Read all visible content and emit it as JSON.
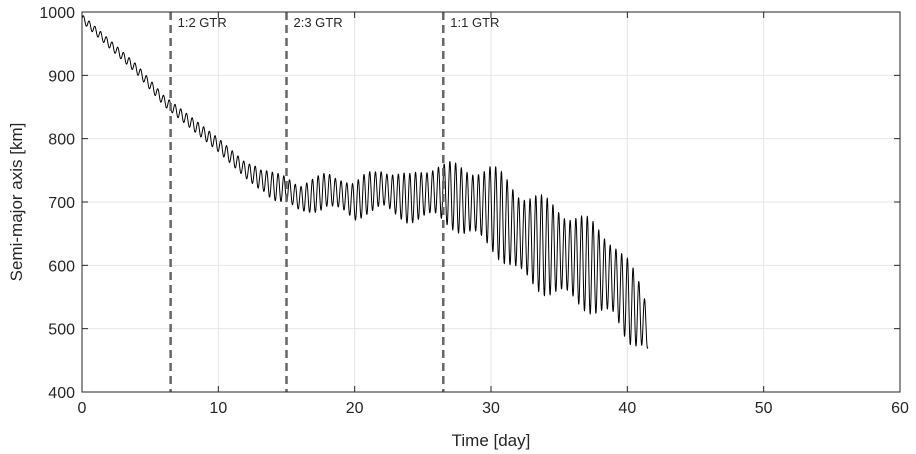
{
  "chart_data": {
    "type": "line",
    "title": "",
    "xlabel": "Time [day]",
    "ylabel": "Semi-major axis [km]",
    "xlim": [
      0,
      60
    ],
    "ylim": [
      400,
      1000
    ],
    "xticks": [
      "0",
      "10",
      "20",
      "30",
      "40",
      "50",
      "60"
    ],
    "yticks": [
      "400",
      "500",
      "600",
      "700",
      "800",
      "900",
      "1000"
    ],
    "grid": true,
    "series": [
      {
        "color": "#000000",
        "mean_trend": [
          [
            0,
            990
          ],
          [
            2,
            950
          ],
          [
            4,
            910
          ],
          [
            6,
            860
          ],
          [
            8,
            825
          ],
          [
            10,
            790
          ],
          [
            12,
            750
          ],
          [
            14,
            725
          ],
          [
            15,
            720
          ],
          [
            16,
            705
          ],
          [
            17,
            710
          ],
          [
            18,
            720
          ],
          [
            19,
            712
          ],
          [
            20,
            700
          ],
          [
            21,
            715
          ],
          [
            22,
            722
          ],
          [
            23,
            712
          ],
          [
            24,
            705
          ],
          [
            25,
            712
          ],
          [
            26,
            718
          ],
          [
            27,
            712
          ],
          [
            28,
            700
          ],
          [
            29,
            698
          ],
          [
            30,
            692
          ],
          [
            31,
            672
          ],
          [
            32,
            652
          ],
          [
            33,
            640
          ],
          [
            34,
            630
          ],
          [
            35,
            622
          ],
          [
            36,
            612
          ],
          [
            37,
            602
          ],
          [
            38,
            590
          ],
          [
            39,
            578
          ],
          [
            40,
            545
          ],
          [
            41,
            520
          ],
          [
            41.5,
            500
          ]
        ],
        "oscillation_halfwidth": [
          [
            0,
            6
          ],
          [
            6,
            8
          ],
          [
            12,
            12
          ],
          [
            14,
            22
          ],
          [
            17,
            28
          ],
          [
            20,
            32
          ],
          [
            24,
            40
          ],
          [
            26,
            48
          ],
          [
            28,
            58
          ],
          [
            30,
            70
          ],
          [
            32,
            78
          ],
          [
            35,
            80
          ],
          [
            38,
            75
          ],
          [
            40,
            70
          ],
          [
            41.5,
            40
          ]
        ]
      }
    ],
    "markers": [
      {
        "x": 6.5,
        "label": "1:2 GTR",
        "style": "dashed"
      },
      {
        "x": 15,
        "label": "2:3 GTR",
        "style": "dashed"
      },
      {
        "x": 26.5,
        "label": "1:1 GTR",
        "style": "dashed"
      }
    ]
  }
}
